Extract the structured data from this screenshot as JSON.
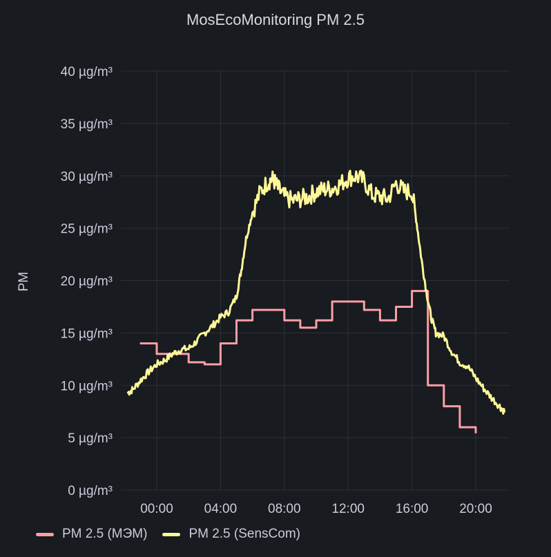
{
  "panel": {
    "title": "MosEcoMonitoring PM 2.5"
  },
  "chart_data": {
    "type": "line",
    "title": "MosEcoMonitoring PM 2.5",
    "ylabel": "PM",
    "xlabel": "",
    "y_unit": "µg/m³",
    "ylim": [
      0,
      40
    ],
    "y_ticks": [
      0,
      5,
      10,
      15,
      20,
      25,
      30,
      35,
      40
    ],
    "y_tick_labels": [
      "0 µg/m³",
      "5 µg/m³",
      "10 µg/m³",
      "15 µg/m³",
      "20 µg/m³",
      "25 µg/m³",
      "30 µg/m³",
      "35 µg/m³",
      "40 µg/m³"
    ],
    "xlim_hours": [
      -2.2,
      22.0
    ],
    "x_ticks_hours": [
      0,
      4,
      8,
      12,
      16,
      20
    ],
    "x_tick_labels": [
      "00:00",
      "04:00",
      "08:00",
      "12:00",
      "16:00",
      "20:00"
    ],
    "grid": true,
    "legend": "bottom-left",
    "series": [
      {
        "name": "PM 2.5 (МЭМ)",
        "color": "#ff9ea8",
        "step": true,
        "points": [
          [
            -1,
            14
          ],
          [
            0,
            13
          ],
          [
            1,
            13
          ],
          [
            2,
            12.2
          ],
          [
            3,
            12
          ],
          [
            4,
            14
          ],
          [
            5,
            16.2
          ],
          [
            6,
            17.2
          ],
          [
            7,
            17.2
          ],
          [
            8,
            16.2
          ],
          [
            9,
            15.5
          ],
          [
            10,
            16.2
          ],
          [
            11,
            18
          ],
          [
            12,
            18
          ],
          [
            13,
            17.2
          ],
          [
            14,
            16.2
          ],
          [
            15,
            17.5
          ],
          [
            16,
            19
          ],
          [
            17,
            10
          ],
          [
            18,
            8
          ],
          [
            19,
            6
          ],
          [
            20,
            5.5
          ]
        ]
      },
      {
        "name": "PM 2.5 (SensCom)",
        "color": "#fff899",
        "step": false,
        "points": [
          [
            -1.8,
            9.3
          ],
          [
            -1.5,
            9.6
          ],
          [
            -1,
            10.5
          ],
          [
            -0.5,
            11.3
          ],
          [
            0,
            12
          ],
          [
            0.5,
            12.4
          ],
          [
            1,
            13
          ],
          [
            1.5,
            13.4
          ],
          [
            2,
            13.5
          ],
          [
            2.5,
            14.2
          ],
          [
            3,
            15
          ],
          [
            3.5,
            15.7
          ],
          [
            4,
            16.5
          ],
          [
            4.5,
            17
          ],
          [
            5,
            18.5
          ],
          [
            5.3,
            21
          ],
          [
            5.6,
            24
          ],
          [
            6,
            26.5
          ],
          [
            6.5,
            28.5
          ],
          [
            7,
            29.5
          ],
          [
            7.3,
            29.7
          ],
          [
            7.6,
            28.8
          ],
          [
            8,
            28
          ],
          [
            8.5,
            27.6
          ],
          [
            9,
            27.8
          ],
          [
            9.5,
            28
          ],
          [
            10,
            28.5
          ],
          [
            10.5,
            28.7
          ],
          [
            11,
            28.8
          ],
          [
            11.5,
            29.2
          ],
          [
            12,
            29.8
          ],
          [
            12.5,
            30
          ],
          [
            13,
            29.5
          ],
          [
            13.5,
            28.2
          ],
          [
            14,
            28
          ],
          [
            14.5,
            27.8
          ],
          [
            15,
            29.3
          ],
          [
            15.5,
            28.5
          ],
          [
            16,
            28.5
          ],
          [
            16.3,
            25.5
          ],
          [
            16.6,
            22
          ],
          [
            16.9,
            19
          ],
          [
            17.2,
            16.5
          ],
          [
            17.5,
            15
          ],
          [
            18,
            14.7
          ],
          [
            18.5,
            13.2
          ],
          [
            19,
            12.2
          ],
          [
            19.5,
            11.8
          ],
          [
            20,
            10.7
          ],
          [
            20.5,
            9.7
          ],
          [
            21,
            8.8
          ],
          [
            21.5,
            8
          ],
          [
            21.8,
            7.5
          ]
        ]
      }
    ]
  }
}
